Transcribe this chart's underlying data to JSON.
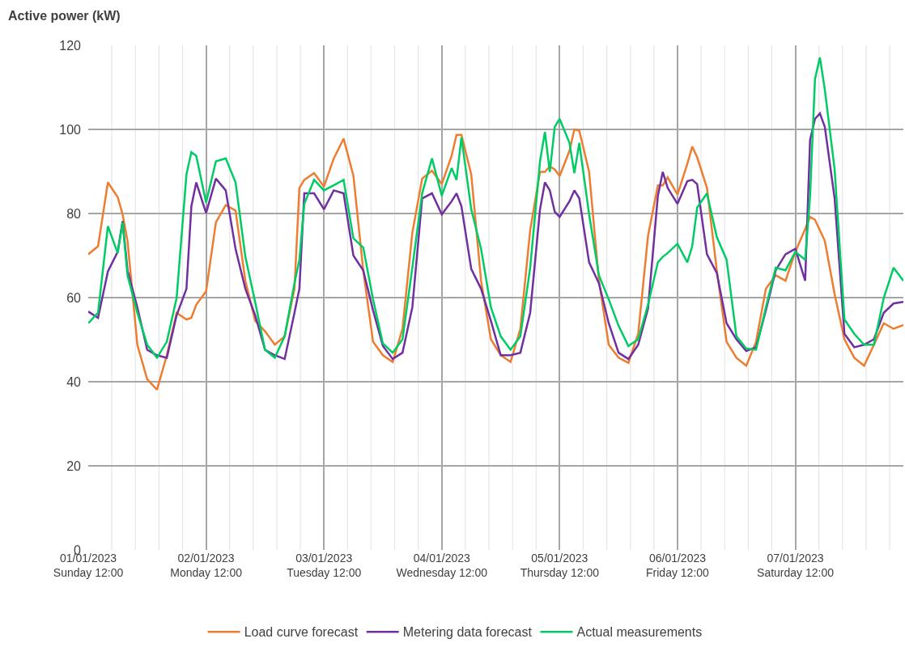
{
  "chart_data": {
    "type": "line",
    "ylabel": "Active power (kW)",
    "x": [
      "2023-01-01T12:00",
      "2023-01-01T14:00",
      "2023-01-01T16:00",
      "2023-01-01T18:00",
      "2023-01-01T19:00",
      "2023-01-01T20:00",
      "2023-01-01T22:00",
      "2023-01-02T00:00",
      "2023-01-02T02:00",
      "2023-01-02T04:00",
      "2023-01-02T06:00",
      "2023-01-02T08:00",
      "2023-01-02T09:00",
      "2023-01-02T10:00",
      "2023-01-02T12:00",
      "2023-01-02T14:00",
      "2023-01-02T16:00",
      "2023-01-02T18:00",
      "2023-01-02T20:00",
      "2023-01-02T22:00",
      "2023-01-03T00:00",
      "2023-01-03T02:00",
      "2023-01-03T04:00",
      "2023-01-03T06:00",
      "2023-01-03T07:00",
      "2023-01-03T08:00",
      "2023-01-03T10:00",
      "2023-01-03T12:00",
      "2023-01-03T14:00",
      "2023-01-03T16:00",
      "2023-01-03T18:00",
      "2023-01-03T20:00",
      "2023-01-03T22:00",
      "2023-01-04T00:00",
      "2023-01-04T02:00",
      "2023-01-04T04:00",
      "2023-01-04T06:00",
      "2023-01-04T08:00",
      "2023-01-04T10:00",
      "2023-01-04T12:00",
      "2023-01-04T14:00",
      "2023-01-04T15:00",
      "2023-01-04T16:00",
      "2023-01-04T18:00",
      "2023-01-04T20:00",
      "2023-01-04T22:00",
      "2023-01-05T00:00",
      "2023-01-05T02:00",
      "2023-01-05T04:00",
      "2023-01-05T06:00",
      "2023-01-05T08:00",
      "2023-01-05T09:00",
      "2023-01-05T10:00",
      "2023-01-05T11:00",
      "2023-01-05T12:00",
      "2023-01-05T14:00",
      "2023-01-05T15:00",
      "2023-01-05T16:00",
      "2023-01-05T18:00",
      "2023-01-05T20:00",
      "2023-01-05T22:00",
      "2023-01-06T00:00",
      "2023-01-06T02:00",
      "2023-01-06T04:00",
      "2023-01-06T06:00",
      "2023-01-06T08:00",
      "2023-01-06T09:00",
      "2023-01-06T10:00",
      "2023-01-06T12:00",
      "2023-01-06T14:00",
      "2023-01-06T15:00",
      "2023-01-06T16:00",
      "2023-01-06T18:00",
      "2023-01-06T20:00",
      "2023-01-06T22:00",
      "2023-01-07T00:00",
      "2023-01-07T02:00",
      "2023-01-07T04:00",
      "2023-01-07T06:00",
      "2023-01-07T08:00",
      "2023-01-07T10:00",
      "2023-01-07T12:00",
      "2023-01-07T14:00",
      "2023-01-07T15:00",
      "2023-01-07T16:00",
      "2023-01-07T17:00",
      "2023-01-07T18:00",
      "2023-01-07T20:00",
      "2023-01-07T22:00",
      "2023-01-08T00:00",
      "2023-01-08T02:00",
      "2023-01-08T04:00",
      "2023-01-08T06:00",
      "2023-01-08T08:00",
      "2023-01-08T10:00"
    ],
    "series": [
      {
        "name": "Load curve forecast",
        "color": "#ed7d31",
        "values": [
          70.3,
          72.2,
          87.4,
          83.9,
          79.8,
          73.5,
          48.8,
          40.6,
          38.1,
          46.3,
          56.4,
          54.8,
          55.2,
          58.3,
          61.5,
          77.9,
          82,
          80.7,
          64,
          54.5,
          52,
          48.8,
          50.8,
          62.1,
          86.1,
          88,
          89.6,
          86.4,
          93.1,
          97.8,
          89,
          66.5,
          49.5,
          46.3,
          44.7,
          52.6,
          75.4,
          88.3,
          90.2,
          87,
          93.7,
          98.7,
          98.7,
          89.3,
          64,
          50.1,
          46.3,
          44.7,
          52.6,
          76,
          89.9,
          89.9,
          91.2,
          90.5,
          88.9,
          94.9,
          100,
          99.7,
          89.9,
          64,
          48.8,
          45.7,
          44.5,
          51.4,
          74.7,
          86.7,
          86.7,
          88.6,
          84.5,
          91.8,
          95.9,
          93.4,
          86.1,
          66.5,
          49.5,
          45.7,
          43.8,
          49.5,
          62.1,
          65.3,
          64,
          70.9,
          76.3,
          79.2,
          78.5,
          76,
          73.5,
          60.8,
          50.1,
          45.7,
          43.8,
          48.8,
          53.9,
          52.6,
          53.5
        ]
      },
      {
        "name": "Metering data forecast",
        "color": "#7030a0",
        "values": [
          56.7,
          55.2,
          66.2,
          70.9,
          78.2,
          66.5,
          57.7,
          47.6,
          46.3,
          45.7,
          55.8,
          62.1,
          81.7,
          87.4,
          80.1,
          88.3,
          85.5,
          71.6,
          62.1,
          55.8,
          47.6,
          46.3,
          45.4,
          56.4,
          62.1,
          84.8,
          84.8,
          81,
          85.5,
          84.8,
          70,
          66.5,
          57,
          48.5,
          45.4,
          46.9,
          57.7,
          83.6,
          84.8,
          79.8,
          82.9,
          84.8,
          81.7,
          66.8,
          62.1,
          54.5,
          46.3,
          46.3,
          46.9,
          56.4,
          81,
          87.4,
          85.5,
          80.4,
          79.2,
          82.9,
          85.5,
          83.6,
          68.4,
          63.4,
          53.9,
          46.9,
          45.4,
          48.8,
          57.4,
          84.2,
          89.9,
          86.1,
          82.3,
          87.7,
          88,
          87,
          70.3,
          65.9,
          53.9,
          50.1,
          47.3,
          48.2,
          57,
          66.5,
          70.3,
          71.6,
          64,
          97.5,
          102.5,
          103.8,
          100.6,
          83.6,
          51.4,
          48.2,
          48.8,
          50.1,
          56.4,
          58.6,
          59
        ]
      },
      {
        "name": "Actual measurements",
        "color": "#00cc66",
        "values": [
          53.9,
          56.4,
          77,
          70.6,
          77.9,
          65.3,
          56.4,
          48.8,
          45.7,
          49.5,
          59.9,
          89.3,
          94.6,
          93.7,
          82.6,
          92.4,
          93.1,
          87.4,
          69.7,
          58.9,
          47.6,
          45.7,
          50.8,
          63.4,
          69,
          82.3,
          88,
          85.5,
          86.7,
          88,
          74.1,
          71.9,
          59.6,
          49.1,
          46.9,
          50.1,
          67.1,
          84.8,
          93.1,
          84.2,
          90.8,
          88,
          98.1,
          81,
          71.6,
          57.7,
          50.8,
          47.6,
          50.8,
          67.1,
          92.4,
          99.4,
          89.9,
          100.6,
          102.5,
          96.8,
          89.6,
          96.8,
          79.8,
          65.3,
          59.6,
          53.3,
          48.5,
          50.1,
          58.3,
          68.4,
          69.7,
          70.6,
          72.8,
          68.4,
          72.2,
          81.4,
          84.8,
          74.4,
          69,
          50.8,
          47.9,
          47.6,
          57.7,
          67.1,
          66.5,
          70.9,
          69,
          84.2,
          112,
          117.1,
          109.5,
          90.5,
          54.8,
          51.4,
          48.8,
          48.8,
          59.9,
          67.1,
          64
        ]
      }
    ],
    "xlim": [
      "2023-01-01T12:00",
      "2023-01-08T10:00"
    ],
    "xticks": [
      {
        "value": "2023-01-01T12:00",
        "label": "01/01/2023\nSunday 12:00"
      },
      {
        "value": "2023-01-01T16:48",
        "label": null
      },
      {
        "value": "2023-01-01T21:36",
        "label": null
      },
      {
        "value": "2023-01-02T02:24",
        "label": null
      },
      {
        "value": "2023-01-02T07:12",
        "label": null
      },
      {
        "value": "2023-01-02T12:00",
        "label": "02/01/2023\nMonday 12:00"
      },
      {
        "value": "2023-01-02T16:48",
        "label": null
      },
      {
        "value": "2023-01-02T21:36",
        "label": null
      },
      {
        "value": "2023-01-03T02:24",
        "label": null
      },
      {
        "value": "2023-01-03T07:12",
        "label": null
      },
      {
        "value": "2023-01-03T12:00",
        "label": "03/01/2023\nTuesday 12:00"
      },
      {
        "value": "2023-01-03T16:48",
        "label": null
      },
      {
        "value": "2023-01-03T21:36",
        "label": null
      },
      {
        "value": "2023-01-04T02:24",
        "label": null
      },
      {
        "value": "2023-01-04T07:12",
        "label": null
      },
      {
        "value": "2023-01-04T12:00",
        "label": "04/01/2023\nWednesday 12:00"
      },
      {
        "value": "2023-01-04T16:48",
        "label": null
      },
      {
        "value": "2023-01-04T21:36",
        "label": null
      },
      {
        "value": "2023-01-05T02:24",
        "label": null
      },
      {
        "value": "2023-01-05T07:12",
        "label": null
      },
      {
        "value": "2023-01-05T12:00",
        "label": "05/01/2023\nThursday 12:00"
      },
      {
        "value": "2023-01-05T16:48",
        "label": null
      },
      {
        "value": "2023-01-05T21:36",
        "label": null
      },
      {
        "value": "2023-01-06T02:24",
        "label": null
      },
      {
        "value": "2023-01-06T07:12",
        "label": null
      },
      {
        "value": "2023-01-06T12:00",
        "label": "06/01/2023\nFriday 12:00"
      },
      {
        "value": "2023-01-06T16:48",
        "label": null
      },
      {
        "value": "2023-01-06T21:36",
        "label": null
      },
      {
        "value": "2023-01-07T02:24",
        "label": null
      },
      {
        "value": "2023-01-07T07:12",
        "label": null
      },
      {
        "value": "2023-01-07T12:00",
        "label": "07/01/2023\nSaturday 12:00"
      },
      {
        "value": "2023-01-07T16:48",
        "label": null
      },
      {
        "value": "2023-01-07T21:36",
        "label": null
      },
      {
        "value": "2023-01-08T02:24",
        "label": null
      },
      {
        "value": "2023-01-08T07:12",
        "label": null
      }
    ],
    "ylim": [
      0,
      120
    ],
    "yticks": [
      0,
      20,
      40,
      60,
      80,
      100,
      120
    ],
    "grid": true,
    "legend": "bottom",
    "marker": "none",
    "line_style": "solid"
  }
}
